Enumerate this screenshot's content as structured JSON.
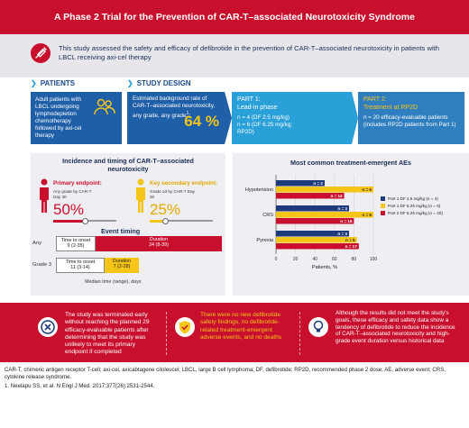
{
  "title": "A Phase 2 Trial for the Prevention of CAR-T–associated Neurotoxicity Syndrome",
  "intro": "This study assessed the safety and efficacy of defibrotide in the prevention of CAR-T–associated neurotoxicity in patients with LBCL receiving axi-cel therapy",
  "patients": {
    "heading": "PATIENTS",
    "text": "Adult patients with LBCL undergoing lymphodepletion chemotherapy followed by axi-cel therapy"
  },
  "study_design": {
    "heading": "STUDY DESIGN",
    "background_text": "Estimated background rate of CAR-T–associated neurotoxicity, any grade",
    "background_sup": "1",
    "background_pct": "64 %",
    "part1_title": "PART 1:",
    "part1_sub": "Lead-in phase",
    "part1_line1": "n = 4 (DF 2.5 mg/kg)",
    "part1_line2": "n = 6 (DF 6.25 mg/kg;",
    "part1_line3": "RP2D)",
    "part2_title": "PART 2:",
    "part2_sub": "Treatment at RP2D",
    "part2_text": "n = 20 efficacy-evaluable patients (includes RP2D patients from Part 1)"
  },
  "incidence": {
    "title": "Incidence and timing of CAR-T–associated neurotoxicity",
    "primary_label": "Primary endpoint:",
    "primary_sub": "Any grade by CAR-T Day 30",
    "primary_pct": "50%",
    "primary_value": 50,
    "secondary_label": "Key secondary endpoint:",
    "secondary_sub": "Grade ≥3 by CAR-T Day 30",
    "secondary_pct": "25%",
    "secondary_value": 25
  },
  "event_timing": {
    "title": "Event timing",
    "rows": [
      {
        "label": "Any",
        "onset_label": "Time to onset",
        "onset": "9 (2-35)",
        "duration_label": "Duration",
        "duration": "24 (8-39)"
      },
      {
        "label": "Grade 3",
        "onset_label": "Time to onset",
        "onset": "11 (3-14)",
        "duration_label": "Duration",
        "duration": "7 (2-28)"
      }
    ],
    "caption": "Median time (range), days"
  },
  "ae": {
    "title": "Most common treatment-emergent AEs",
    "xlabel": "Patients, %",
    "legend": [
      {
        "name": "Part 1 DF 2.5 mg/kg (n = 4)",
        "color": "#1f3a7a"
      },
      {
        "name": "Part 1 DF 6.25 mg/kg (n = 6)",
        "color": "#f5c518"
      },
      {
        "name": "Part 2 DF 6.25 mg/kg (n = 20)",
        "color": "#c8102e"
      }
    ]
  },
  "chart_data": {
    "type": "bar",
    "orientation": "horizontal",
    "title": "Most common treatment-emergent AEs",
    "xlabel": "Patients, %",
    "categories": [
      "Hypotension",
      "CRS",
      "Pyrexia"
    ],
    "series": [
      {
        "name": "Part 1 DF 2.5 mg/kg (n = 4)",
        "color": "#1f3a7a",
        "values": [
          50,
          75,
          75
        ],
        "labels": [
          "n = 2",
          "n = 3",
          "n = 3"
        ]
      },
      {
        "name": "Part 1 DF 6.25 mg/kg (n = 6)",
        "color": "#f5c518",
        "values": [
          100,
          100,
          83
        ],
        "labels": [
          "n = 6",
          "n = 6",
          "n = 5"
        ]
      },
      {
        "name": "Part 2 DF 6.25 mg/kg (n = 20)",
        "color": "#c8102e",
        "values": [
          70,
          80,
          85
        ],
        "labels": [
          "n = 14",
          "n = 16",
          "n = 17"
        ]
      }
    ],
    "xlim": [
      0,
      100
    ],
    "xticks": [
      "0",
      "20",
      "40",
      "60",
      "80",
      "100"
    ]
  },
  "conclusions": [
    {
      "text": "The study was terminated early without reaching the planned 29 efficacy-evaluable patients after determining that the study was unlikely to meet its primary endpoint if completed",
      "color": "white"
    },
    {
      "text": "There were no new defibrotide safety findings, no defibrotide-related treatment-emergent adverse events, and no deaths",
      "color": "yellow"
    },
    {
      "text": "Although the results did not meet the study's goals, these efficacy and safety data show a tendency of defibrotide to reduce the incidence of CAR-T–associated neurotoxicity and high-grade event duration versus historical data",
      "color": "white"
    }
  ],
  "footnote": "CAR-T, chimeric antigen receptor T-cell; axi-cel, axicabtagene ciloleucel; LBCL, large B cell lymphoma; DF, defibrotide; RP2D, recommended phase 2 dose; AE, adverse event; CRS, cytokine release syndrome.",
  "reference": "1. Neelapu SS, et al. N Engl J Med. 2017;377(26):2531-2544."
}
